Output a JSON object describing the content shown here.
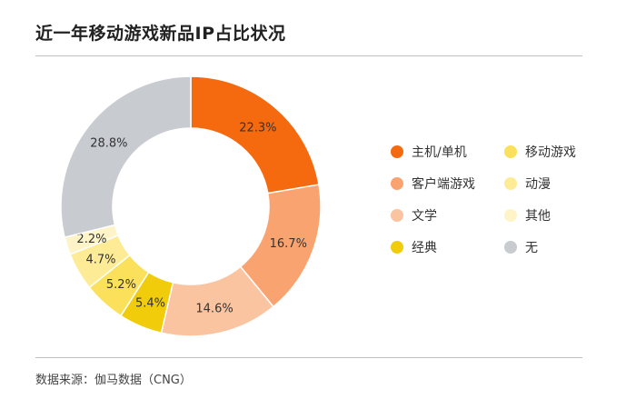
{
  "chart_title": "近一年移动游戏新品IP占比状况",
  "source": "数据来源：伽马数据（CNG）",
  "chart_data": {
    "type": "pie",
    "donut": true,
    "title": "近一年移动游戏新品IP占比状况",
    "legend_placement": "right",
    "categories": [
      "主机/单机",
      "客户端游戏",
      "文学",
      "经典",
      "移动游戏",
      "动漫",
      "其他",
      "无"
    ],
    "values": [
      22.3,
      16.7,
      14.6,
      5.4,
      5.2,
      4.7,
      2.2,
      28.8
    ],
    "labels": [
      "22.3%",
      "16.7%",
      "14.6%",
      "5.4%",
      "5.2%",
      "4.7%",
      "2.2%",
      "28.8%"
    ],
    "colors": [
      "#f5690f",
      "#f9a470",
      "#fbc4a1",
      "#f0cc0a",
      "#fbe05c",
      "#fdeb96",
      "#fef4c8",
      "#c8ccd1"
    ]
  }
}
